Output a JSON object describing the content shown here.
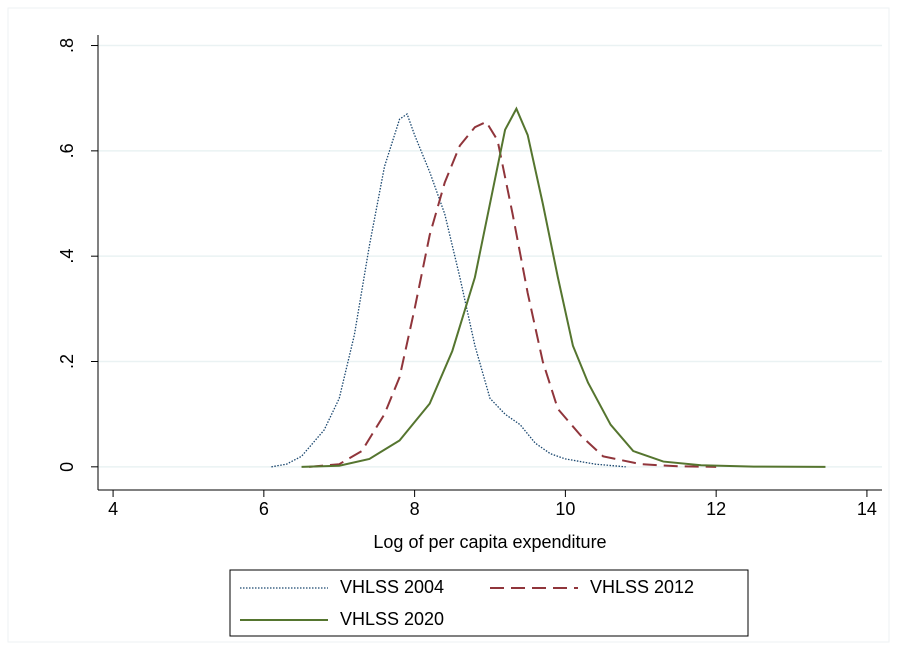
{
  "chart_data": {
    "type": "line",
    "xlabel": "Log of per capita expenditure",
    "xlim": [
      3.8,
      14.2
    ],
    "xticks": [
      4,
      6,
      8,
      10,
      12,
      14
    ],
    "ylim": [
      -0.044,
      0.82
    ],
    "yticks": [
      0,
      {
        "value": 0.2,
        "label": ".2"
      },
      {
        "value": 0.4,
        "label": ".4"
      },
      {
        "value": 0.6,
        "label": ".6"
      },
      {
        "value": 0.8,
        "label": ".8"
      }
    ],
    "grid": true,
    "legend": "bottom",
    "series": [
      {
        "name": "VHLSS 2004",
        "color": "#1a476f",
        "dash": "dotted",
        "x": [
          6.1,
          6.3,
          6.5,
          6.8,
          7.0,
          7.2,
          7.4,
          7.6,
          7.8,
          7.9,
          8.0,
          8.2,
          8.4,
          8.6,
          8.8,
          9.0,
          9.2,
          9.4,
          9.6,
          9.8,
          10.0,
          10.4,
          10.8
        ],
        "values": [
          0,
          0.005,
          0.02,
          0.07,
          0.13,
          0.25,
          0.42,
          0.57,
          0.66,
          0.67,
          0.63,
          0.56,
          0.48,
          0.36,
          0.23,
          0.13,
          0.1,
          0.08,
          0.045,
          0.025,
          0.015,
          0.005,
          0
        ]
      },
      {
        "name": "VHLSS 2012",
        "color": "#90353b",
        "dash": "dashed",
        "x": [
          6.6,
          7.0,
          7.3,
          7.6,
          7.8,
          8.0,
          8.2,
          8.4,
          8.6,
          8.8,
          8.95,
          9.1,
          9.3,
          9.5,
          9.7,
          9.9,
          10.2,
          10.5,
          11.0,
          11.5,
          12.0
        ],
        "values": [
          0,
          0.005,
          0.03,
          0.1,
          0.17,
          0.3,
          0.44,
          0.54,
          0.61,
          0.645,
          0.655,
          0.62,
          0.48,
          0.33,
          0.2,
          0.11,
          0.06,
          0.02,
          0.005,
          0.001,
          0
        ]
      },
      {
        "name": "VHLSS 2020",
        "color": "#55752f",
        "dash": "solid",
        "x": [
          6.5,
          7.0,
          7.4,
          7.8,
          8.2,
          8.5,
          8.8,
          9.0,
          9.2,
          9.35,
          9.5,
          9.7,
          9.9,
          10.1,
          10.3,
          10.6,
          10.9,
          11.3,
          11.8,
          12.5,
          13.45
        ],
        "values": [
          0,
          0.002,
          0.015,
          0.05,
          0.12,
          0.22,
          0.36,
          0.5,
          0.64,
          0.68,
          0.63,
          0.5,
          0.36,
          0.23,
          0.16,
          0.08,
          0.03,
          0.01,
          0.003,
          0.0005,
          0
        ]
      }
    ]
  }
}
